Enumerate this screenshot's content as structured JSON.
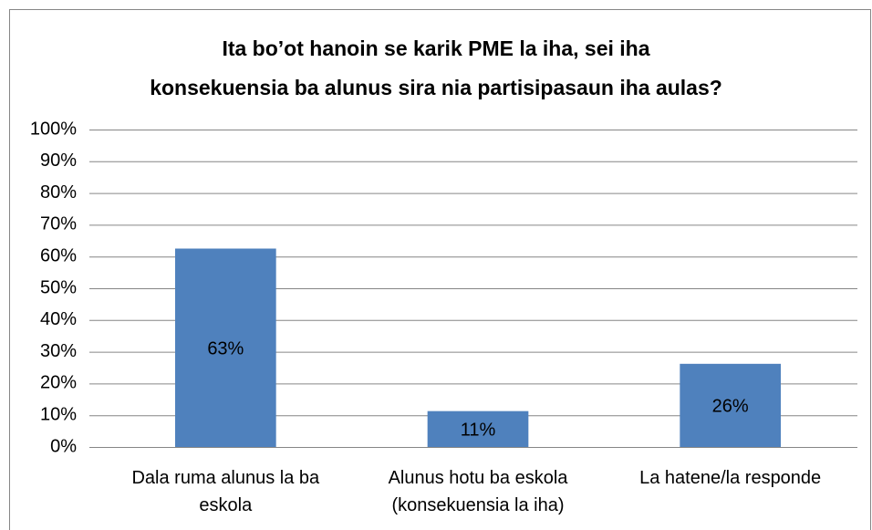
{
  "chart_data": {
    "type": "bar",
    "title": "Ita bo’ot hanoin se karik PME la iha, sei iha\nkonsekuensia ba alunus sira nia partisipasaun iha aulas?",
    "categories": [
      "Dala ruma alunus la ba\neskola",
      "Alunus hotu ba eskola\n(konsekuensia la iha)",
      "La hatene/la responde"
    ],
    "values": [
      62.5,
      11.3,
      26.2
    ],
    "value_labels": [
      "63%",
      "11%",
      "26%"
    ],
    "color": "#4f81bd",
    "ylim": [
      0,
      100
    ],
    "yticks": [
      {
        "value": 0,
        "label": "0%"
      },
      {
        "value": 10,
        "label": "10%"
      },
      {
        "value": 20,
        "label": "20%"
      },
      {
        "value": 30,
        "label": "30%"
      },
      {
        "value": 40,
        "label": "40%"
      },
      {
        "value": 50,
        "label": "50%"
      },
      {
        "value": 60,
        "label": "60%"
      },
      {
        "value": 70,
        "label": "70%"
      },
      {
        "value": 80,
        "label": "80%"
      },
      {
        "value": 90,
        "label": "90%"
      },
      {
        "value": 100,
        "label": "100%"
      }
    ],
    "grid": true
  }
}
